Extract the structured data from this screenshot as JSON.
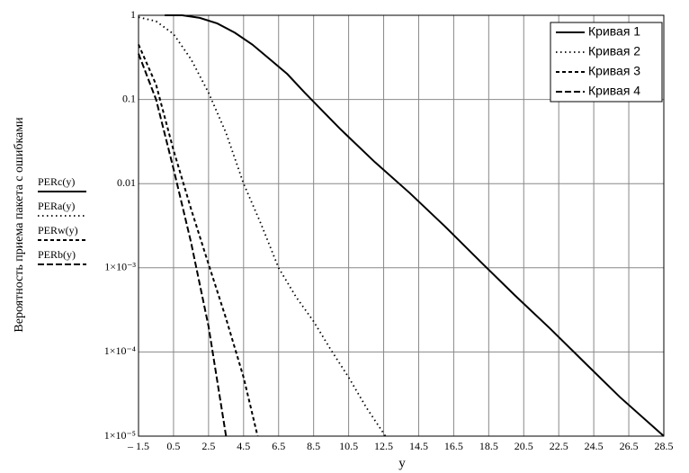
{
  "chart_data": {
    "type": "line",
    "x_label": "y",
    "y_label": "Вероятность приема пакета с ошибками",
    "log_y": true,
    "grid": true,
    "legend_position": "upper right",
    "xlim": [
      -1.5,
      28.5
    ],
    "xticks": [
      {
        "value": -1.5,
        "label": "– 1.5"
      },
      0.5,
      2.5,
      4.5,
      6.5,
      8.5,
      10.5,
      12.5,
      14.5,
      16.5,
      18.5,
      20.5,
      22.5,
      24.5,
      26.5,
      28.5
    ],
    "ylim": [
      1e-05,
      1
    ],
    "yticks": [
      {
        "value": 1e-05,
        "label": "1×10⁻⁵"
      },
      {
        "value": 0.0001,
        "label": "1×10⁻⁴"
      },
      {
        "value": 0.001,
        "label": "1×10⁻³"
      },
      0.01,
      0.1,
      1
    ],
    "series": [
      {
        "name": "Кривая 1",
        "expression": "PERc(y)",
        "color": "#000000",
        "dash": "none",
        "width": 2,
        "x": [
          0,
          1,
          2,
          3,
          4,
          5,
          6,
          7,
          8,
          10,
          12,
          14,
          16,
          18,
          20,
          22,
          24,
          26,
          28.5
        ],
        "values": [
          1,
          1,
          0.93,
          0.8,
          0.62,
          0.45,
          0.3,
          0.2,
          0.12,
          0.045,
          0.018,
          0.0077,
          0.0031,
          0.0012,
          0.00047,
          0.00019,
          7.4e-05,
          2.9e-05,
          1e-05
        ]
      },
      {
        "name": "Кривая 2",
        "expression": "PERa(y)",
        "color": "#000000",
        "dash": "1.5,3.5",
        "width": 1.8,
        "x": [
          -1.5,
          -0.5,
          0.5,
          1.5,
          2.5,
          3.5,
          4.5,
          5.5,
          6.5,
          7.5,
          8.5,
          9.5,
          10.5,
          11.5,
          12.6
        ],
        "values": [
          0.95,
          0.85,
          0.6,
          0.3,
          0.12,
          0.04,
          0.01,
          0.0033,
          0.001,
          0.00045,
          0.00023,
          0.000105,
          5e-05,
          2.2e-05,
          1e-05
        ]
      },
      {
        "name": "Кривая 3",
        "expression": "PERw(y)",
        "color": "#000000",
        "dash": "4,3",
        "width": 2,
        "x": [
          -1.5,
          -0.5,
          0.5,
          1.5,
          2.5,
          3.5,
          4.5,
          5.3
        ],
        "values": [
          0.45,
          0.15,
          0.025,
          0.005,
          0.0011,
          0.00025,
          5e-05,
          1e-05
        ]
      },
      {
        "name": "Кривая 4",
        "expression": "PERb(y)",
        "color": "#000000",
        "dash": "7,3",
        "width": 2,
        "x": [
          -1.5,
          -0.5,
          0.5,
          1.5,
          2.5,
          3.5
        ],
        "values": [
          0.35,
          0.1,
          0.015,
          0.002,
          0.0002,
          1e-05
        ]
      }
    ]
  }
}
